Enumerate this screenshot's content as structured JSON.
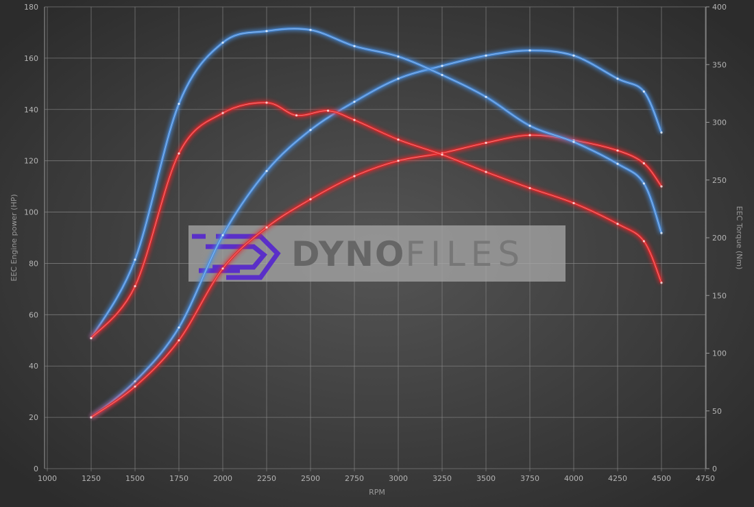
{
  "chart_data": {
    "type": "line",
    "xlabel": "RPM",
    "ylabel_left": "EEC Engine power (HP)",
    "ylabel_right": "EEC Torque (Nm)",
    "xlim": [
      1000,
      4750
    ],
    "ylim_left": [
      0,
      180
    ],
    "ylim_right": [
      0,
      400
    ],
    "x_ticks": [
      "1000",
      "1250",
      "1500",
      "1750",
      "2000",
      "2250",
      "2500",
      "2750",
      "3000",
      "3250",
      "3500",
      "3750",
      "4000",
      "4250",
      "4500",
      "4750"
    ],
    "y_ticks_left": [
      "0",
      "20",
      "40",
      "60",
      "80",
      "100",
      "120",
      "140",
      "160",
      "180"
    ],
    "y_ticks_right": [
      "0",
      "50",
      "100",
      "150",
      "200",
      "250",
      "300",
      "350",
      "400"
    ],
    "grid": true,
    "watermark": "DYNOFILES",
    "colors": {
      "tuned": "#4a90e2",
      "stock": "#e8282a",
      "background": "#3c3c3c",
      "grid": "#8a8a8a"
    },
    "series": [
      {
        "axis": "left",
        "color": "tuned",
        "x": [
          1250,
          1500,
          1750,
          2000,
          2250,
          2500,
          2750,
          3000,
          3250,
          3500,
          3750,
          4000,
          4250,
          4400,
          4500
        ],
        "y": [
          20,
          34,
          55,
          91,
          116,
          132,
          143,
          152,
          157,
          161,
          163,
          161,
          152,
          147,
          131
        ]
      },
      {
        "axis": "left",
        "color": "stock",
        "x": [
          1250,
          1500,
          1750,
          2000,
          2250,
          2500,
          2750,
          3000,
          3250,
          3500,
          3750,
          4000,
          4250,
          4400,
          4500
        ],
        "y": [
          20,
          32,
          50,
          78,
          94,
          105,
          114,
          120,
          123,
          127,
          130,
          128,
          124,
          119,
          110
        ]
      },
      {
        "axis": "right",
        "color": "tuned",
        "x": [
          1250,
          1500,
          1750,
          2000,
          2250,
          2500,
          2750,
          3000,
          3250,
          3500,
          3750,
          4000,
          4250,
          4400,
          4500
        ],
        "y": [
          113,
          181,
          316,
          369,
          379,
          380,
          366,
          357,
          341,
          322,
          297,
          283,
          264,
          247,
          204
        ]
      },
      {
        "axis": "right",
        "color": "stock",
        "x": [
          1250,
          1500,
          1750,
          2000,
          2250,
          2420,
          2600,
          2750,
          3000,
          3250,
          3500,
          3750,
          4000,
          4250,
          4400,
          4500
        ],
        "y": [
          113,
          158,
          273,
          308,
          317,
          306,
          310,
          302,
          285,
          272,
          257,
          243,
          230,
          212,
          197,
          161
        ]
      }
    ]
  }
}
